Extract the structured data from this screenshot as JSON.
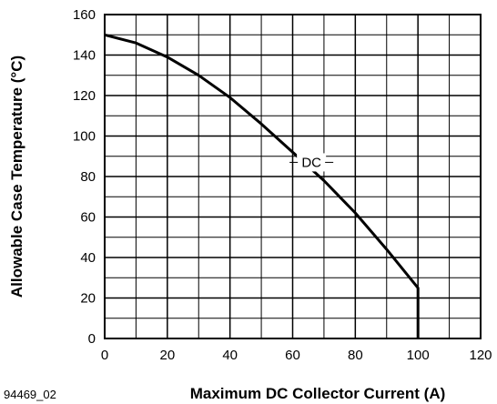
{
  "figure_id": "94469_02",
  "chart_data": {
    "type": "line",
    "title": "",
    "xlabel": "Maximum DC Collector Current (A)",
    "ylabel": "Allowable Case Temperature (°C)",
    "xlim": [
      0,
      120
    ],
    "ylim": [
      0,
      160
    ],
    "x_ticks": [
      0,
      20,
      40,
      60,
      80,
      100,
      120
    ],
    "y_ticks": [
      0,
      20,
      40,
      60,
      80,
      100,
      120,
      140,
      160
    ],
    "x_tick_labels": [
      "0",
      "20",
      "40",
      "60",
      "80",
      "100",
      "120"
    ],
    "y_tick_labels": [
      "0",
      "20",
      "40",
      "60",
      "80",
      "100",
      "120",
      "140",
      "160"
    ],
    "grid": true,
    "x_minor_step": 10,
    "y_minor_step": 10,
    "series": [
      {
        "name": "DC",
        "x": [
          0,
          10,
          20,
          30,
          40,
          50,
          60,
          70,
          80,
          90,
          100,
          100
        ],
        "y": [
          150,
          146,
          139,
          130,
          119,
          106,
          92,
          78,
          62,
          44,
          25,
          0
        ]
      }
    ],
    "annotations": [
      {
        "text": "DC",
        "x": 66,
        "y": 87
      }
    ]
  }
}
